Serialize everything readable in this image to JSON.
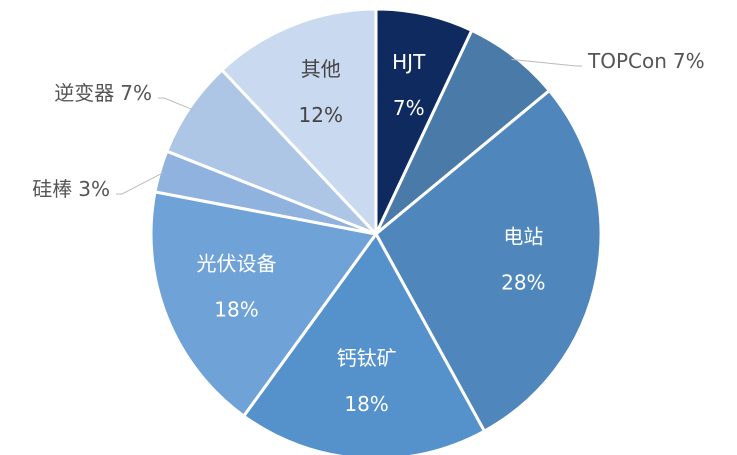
{
  "chart_data": {
    "type": "pie",
    "categories": [
      "HJT",
      "TOPCon",
      "电站",
      "钙钛矿",
      "光伏设备",
      "硅棒",
      "逆变器",
      "其他"
    ],
    "values": [
      7,
      7,
      28,
      18,
      18,
      3,
      7,
      12
    ],
    "value_labels": [
      "7%",
      "7%",
      "28%",
      "18%",
      "18%",
      "3%",
      "7%",
      "12%"
    ],
    "colors": [
      "#0e2a5f",
      "#4a7aa8",
      "#4f87bd",
      "#5592cc",
      "#6fa2d7",
      "#8fb3de",
      "#adc6e6",
      "#c9d9ef"
    ]
  }
}
